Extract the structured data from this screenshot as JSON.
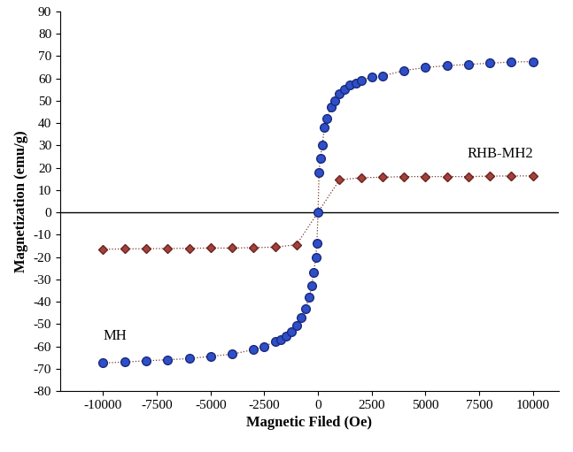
{
  "chart_data": {
    "type": "scatter",
    "x_label": "Magnetic Filed (Oe)",
    "y_label": "Magnetization (emu/g)",
    "xlim": [
      -12000,
      11200
    ],
    "xticks": [
      -10000,
      -7500,
      -5000,
      -2500,
      0,
      2500,
      5000,
      7500,
      10000
    ],
    "ylim": [
      -80,
      90
    ],
    "yticks": [
      -80,
      -70,
      -60,
      -50,
      -40,
      -30,
      -20,
      -10,
      0,
      10,
      20,
      30,
      40,
      50,
      60,
      70,
      80,
      90
    ],
    "grid": false,
    "series": [
      {
        "name": "MH",
        "color": "#2f4fc8",
        "marker": "circle",
        "line_style": "dotted",
        "x": [
          -10000,
          -9000,
          -8000,
          -7000,
          -6000,
          -5000,
          -4000,
          -3000,
          -2500,
          -2000,
          -1750,
          -1500,
          -1250,
          -1000,
          -800,
          -600,
          -400,
          -300,
          -200,
          -100,
          -50,
          0,
          50,
          100,
          200,
          300,
          400,
          600,
          800,
          1000,
          1250,
          1500,
          1750,
          2000,
          2500,
          3000,
          4000,
          5000,
          6000,
          7000,
          8000,
          9000,
          10000
        ],
        "values": [
          -67.5,
          -67,
          -66.5,
          -66,
          -65.5,
          -64.5,
          -63.5,
          -61.5,
          -60,
          -58,
          -57,
          -55.5,
          -53.5,
          -50.5,
          -47,
          -43,
          -38,
          -33,
          -27,
          -20,
          -14,
          0,
          18,
          24,
          30,
          38,
          42,
          47,
          50,
          53,
          55,
          57,
          58,
          59,
          60.5,
          61,
          63.5,
          64.8,
          65.7,
          66.2,
          66.8,
          67.3,
          67.5
        ]
      },
      {
        "name": "RHB-MH2",
        "color": "#a3413b",
        "marker": "diamond",
        "line_style": "dotted",
        "x": [
          -10000,
          -9000,
          -8000,
          -7000,
          -6000,
          -5000,
          -4000,
          -3000,
          -2000,
          -1000,
          0,
          1000,
          2000,
          3000,
          4000,
          5000,
          6000,
          7000,
          8000,
          9000,
          10000
        ],
        "values": [
          -16.5,
          -16.4,
          -16.3,
          -16.2,
          -16.1,
          -16,
          -16,
          -15.8,
          -15.6,
          -14.5,
          0,
          14.5,
          15.5,
          15.7,
          16,
          16,
          16,
          16,
          16.2,
          16.3,
          16.3
        ]
      }
    ]
  }
}
